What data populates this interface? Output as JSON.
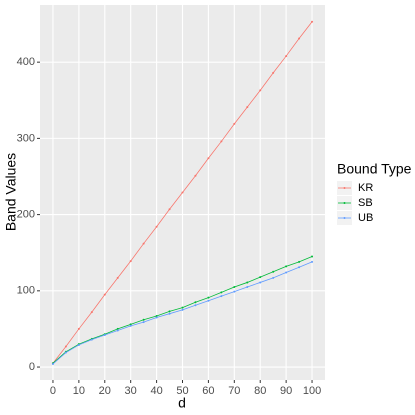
{
  "chart_data": {
    "type": "line",
    "x_label": "d",
    "y_label": "Band Values",
    "legend_title": "Bound Type",
    "x": [
      0,
      5,
      10,
      15,
      20,
      25,
      30,
      35,
      40,
      45,
      50,
      55,
      60,
      65,
      70,
      75,
      80,
      85,
      90,
      95,
      100
    ],
    "series": [
      {
        "name": "KR",
        "color": "#F8766D",
        "values": [
          5,
          27,
          50,
          72,
          95,
          117,
          139,
          162,
          184,
          207,
          229,
          251,
          274,
          296,
          319,
          341,
          363,
          386,
          408,
          431,
          453
        ]
      },
      {
        "name": "SB",
        "color": "#00BA38",
        "values": [
          5,
          20,
          30,
          37,
          43,
          50,
          56,
          62,
          67,
          73,
          78,
          85,
          91,
          98,
          105,
          111,
          118,
          125,
          132,
          138,
          145
        ]
      },
      {
        "name": "UB",
        "color": "#619CFF",
        "values": [
          4,
          19,
          29,
          36,
          42,
          48,
          54,
          59,
          65,
          70,
          75,
          81,
          87,
          93,
          99,
          105,
          111,
          117,
          124,
          131,
          138
        ]
      }
    ],
    "xlim": [
      -5,
      105
    ],
    "ylim": [
      -17,
      475
    ],
    "xticks": [
      0,
      10,
      20,
      30,
      40,
      50,
      60,
      70,
      80,
      90,
      100
    ],
    "yticks": [
      0,
      100,
      200,
      300,
      400
    ],
    "grid": true
  }
}
